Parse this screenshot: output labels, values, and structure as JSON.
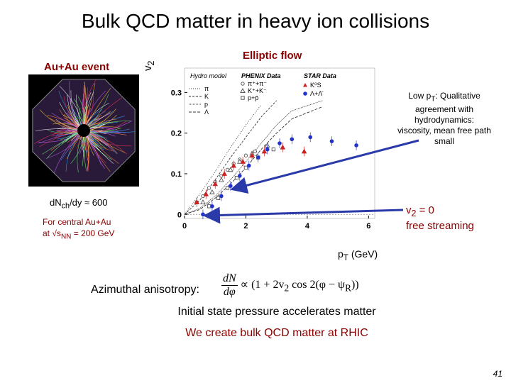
{
  "slide": {
    "title": "Bulk QCD matter in heavy ion collisions",
    "page_number": "41"
  },
  "left_panel": {
    "event_label": "Au+Au event",
    "multiplicity": {
      "main": "dN",
      "sub": "ch",
      "rest": "/dy ≈ 600"
    },
    "central_line1": "For central Au+Au",
    "central_line2_pre": "at √s",
    "central_line2_sub": "NN",
    "central_line2_post": " = 200 GeV"
  },
  "annotations": {
    "low_pt_pre": "Low p",
    "low_pt_sub": "T",
    "low_pt_post": ": Qualitative agreement with hydrodynamics: viscosity, mean free path small",
    "v2_zero_pre": "v",
    "v2_zero_sub": "2",
    "v2_zero_post": " = 0",
    "free_streaming": "free streaming",
    "arrow_color": "#2a3aa8"
  },
  "bottom": {
    "anisotropy_label": "Azimuthal anisotropy:",
    "formula": {
      "num": "dN",
      "den": "dφ",
      "rhs_pre": "∝ (1 + 2v",
      "rhs_sub": "2",
      "rhs_mid": " cos 2(φ − ψ",
      "rhs_sub2": "R",
      "rhs_post": "))"
    },
    "pressure_line": "Initial state pressure accelerates matter",
    "bulk_line": "We create bulk QCD matter at RHIC"
  },
  "chart_data": {
    "type": "scatter",
    "title": "Elliptic flow",
    "ylabel_main": "v",
    "ylabel_sub": "2",
    "xlabel_main": "p",
    "xlabel_sub": "T",
    "xlabel_unit": "(GeV)",
    "xlim": [
      0,
      6.2
    ],
    "ylim": [
      -0.01,
      0.36
    ],
    "x_ticks": [
      0,
      2,
      4,
      6
    ],
    "y_ticks": [
      0,
      0.1,
      0.2,
      0.3
    ],
    "y_tick_labels": [
      "0",
      "0.1",
      "0.2",
      "0.3"
    ],
    "legend_hydro_title": "Hydro model",
    "legend_phenix_title": "PHENIX Data",
    "legend_star_title": "STAR Data",
    "legend_hydro": [
      "π",
      "K",
      "p",
      "Λ"
    ],
    "legend_phenix": [
      "π⁺+π⁻",
      "K⁺+K⁻",
      "p+p̄"
    ],
    "legend_star": [
      "K⁰S",
      "Λ+Λ̄"
    ],
    "hydro_curves": [
      {
        "name": "π",
        "x": [
          0,
          0.5,
          1.0,
          1.5,
          2.0,
          2.5
        ],
        "y": [
          0,
          0.05,
          0.105,
          0.165,
          0.22,
          0.27
        ]
      },
      {
        "name": "K",
        "x": [
          0,
          0.5,
          1.0,
          1.5,
          2.0,
          2.5,
          3.0
        ],
        "y": [
          0,
          0.035,
          0.085,
          0.14,
          0.19,
          0.24,
          0.28
        ]
      },
      {
        "name": "p",
        "x": [
          0,
          0.5,
          1.0,
          1.5,
          2.0,
          2.5,
          3.0,
          3.5,
          4.5
        ],
        "y": [
          0,
          0.015,
          0.045,
          0.085,
          0.13,
          0.175,
          0.22,
          0.255,
          0.28
        ]
      },
      {
        "name": "Λ",
        "x": [
          0,
          0.5,
          1.0,
          1.5,
          2.0,
          2.5,
          3.0,
          3.5,
          4.5
        ],
        "y": [
          0,
          0.012,
          0.04,
          0.075,
          0.115,
          0.16,
          0.2,
          0.235,
          0.265
        ]
      }
    ],
    "series": [
      {
        "name": "π⁺+π⁻",
        "marker": "open-circle",
        "color": "#555555",
        "x": [
          0.4,
          0.6,
          0.8,
          1.0,
          1.2,
          1.4,
          1.6,
          1.8,
          2.0,
          2.3,
          2.7
        ],
        "y": [
          0.03,
          0.045,
          0.065,
          0.08,
          0.095,
          0.11,
          0.125,
          0.135,
          0.145,
          0.155,
          0.16
        ]
      },
      {
        "name": "K⁺+K⁻",
        "marker": "open-triangle",
        "color": "#555555",
        "x": [
          0.6,
          0.9,
          1.2,
          1.5,
          1.8,
          2.2,
          2.7
        ],
        "y": [
          0.03,
          0.055,
          0.085,
          0.11,
          0.13,
          0.15,
          0.17
        ]
      },
      {
        "name": "p+p̄",
        "marker": "open-square",
        "color": "#555555",
        "x": [
          0.8,
          1.1,
          1.4,
          1.7,
          2.0,
          2.4,
          2.9
        ],
        "y": [
          0.02,
          0.04,
          0.065,
          0.09,
          0.115,
          0.14,
          0.16
        ]
      },
      {
        "name": "K⁰S",
        "marker": "filled-triangle",
        "color": "#cc2222",
        "x": [
          0.4,
          0.7,
          1.0,
          1.3,
          1.6,
          1.9,
          2.2,
          2.6,
          3.2,
          3.9
        ],
        "y": [
          0.03,
          0.05,
          0.075,
          0.1,
          0.12,
          0.13,
          0.145,
          0.155,
          0.165,
          0.155
        ]
      },
      {
        "name": "Λ+Λ̄",
        "marker": "filled-circle",
        "color": "#2233cc",
        "x": [
          0.6,
          0.9,
          1.2,
          1.5,
          1.8,
          2.1,
          2.4,
          2.7,
          3.1,
          3.5,
          4.1,
          4.8,
          5.6
        ],
        "y": [
          0.0,
          0.02,
          0.045,
          0.07,
          0.095,
          0.12,
          0.14,
          0.16,
          0.175,
          0.185,
          0.19,
          0.18,
          0.17
        ]
      }
    ]
  }
}
